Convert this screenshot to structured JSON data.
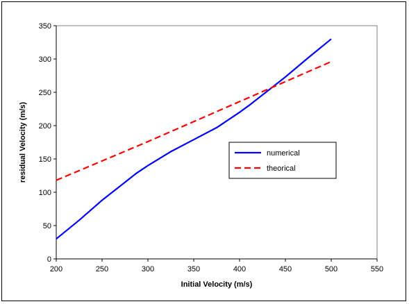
{
  "chart_data": {
    "type": "line",
    "title": "",
    "xlabel": "Initial Velocity (m/s)",
    "ylabel": "residual Velocity (m/s)",
    "xlim": [
      200,
      550
    ],
    "ylim": [
      0,
      350
    ],
    "xticks": [
      200,
      250,
      300,
      350,
      400,
      450,
      500,
      550
    ],
    "yticks": [
      0,
      50,
      100,
      150,
      200,
      250,
      300,
      350
    ],
    "grid": false,
    "legend_position": "right",
    "series": [
      {
        "name": "numerical",
        "color": "#0000ff",
        "style": "solid",
        "x": [
          200,
          225,
          250,
          275,
          287,
          300,
          325,
          350,
          375,
          400,
          412,
          425,
          450,
          475,
          500
        ],
        "y": [
          30,
          58,
          88,
          115,
          128,
          140,
          161,
          179,
          197,
          220,
          232,
          246,
          273,
          302,
          330
        ]
      },
      {
        "name": "theorical",
        "color": "#ff0000",
        "style": "dashed",
        "x": [
          200,
          250,
          300,
          350,
          400,
          450,
          500
        ],
        "y": [
          118,
          147,
          176,
          206,
          236,
          266,
          296
        ]
      }
    ]
  }
}
